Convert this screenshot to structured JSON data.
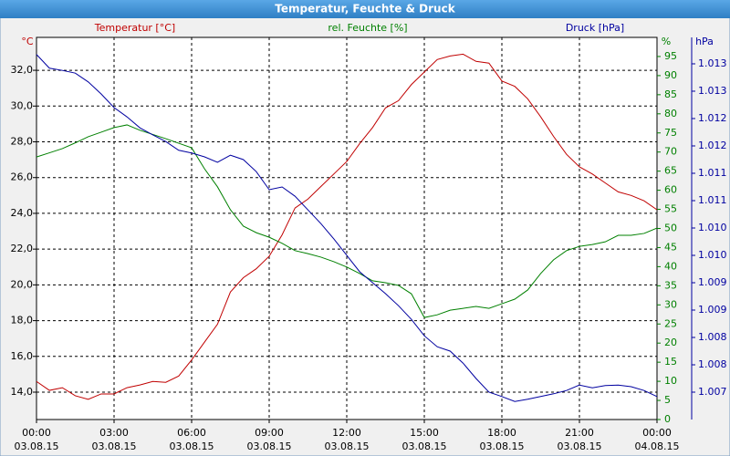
{
  "chart_data": {
    "type": "line",
    "title": "Temperatur, Feuchte & Druck",
    "x": [
      0,
      0.5,
      1,
      1.5,
      2,
      2.5,
      3,
      3.5,
      4,
      4.5,
      5,
      5.5,
      6,
      6.5,
      7,
      7.5,
      8,
      8.5,
      9,
      9.5,
      10,
      10.5,
      11,
      11.5,
      12,
      12.5,
      13,
      13.5,
      14,
      14.5,
      15,
      15.5,
      16,
      16.5,
      17,
      17.5,
      18,
      18.5,
      19,
      19.5,
      20,
      20.5,
      21,
      21.5,
      22,
      22.5,
      23,
      23.5,
      24
    ],
    "xlim": [
      0,
      24
    ],
    "xticks": [
      {
        "value": 0,
        "label": "00:00"
      },
      {
        "value": 3,
        "label": "03:00"
      },
      {
        "value": 6,
        "label": "06:00"
      },
      {
        "value": 9,
        "label": "09:00"
      },
      {
        "value": 12,
        "label": "12:00"
      },
      {
        "value": 15,
        "label": "15:00"
      },
      {
        "value": 18,
        "label": "18:00"
      },
      {
        "value": 21,
        "label": "21:00"
      },
      {
        "value": 24,
        "label": "00:00"
      }
    ],
    "xtick_dates": [
      "03.08.15",
      "03.08.15",
      "03.08.15",
      "03.08.15",
      "03.08.15",
      "03.08.15",
      "03.08.15",
      "03.08.15",
      "04.08.15"
    ],
    "ylabel": "°C",
    "y2label": "%",
    "y3label": "hPa",
    "ylim": [
      12.47,
      33.84
    ],
    "yticks": [
      {
        "value": 14,
        "label": "14,0"
      },
      {
        "value": 16,
        "label": "16,0"
      },
      {
        "value": 18,
        "label": "18,0"
      },
      {
        "value": 20,
        "label": "20,0"
      },
      {
        "value": 22,
        "label": "22,0"
      },
      {
        "value": 24,
        "label": "24,0"
      },
      {
        "value": 26,
        "label": "26,0"
      },
      {
        "value": 28,
        "label": "28,0"
      },
      {
        "value": 30,
        "label": "30,0"
      },
      {
        "value": 32,
        "label": "32,0"
      }
    ],
    "y2lim": [
      0,
      100
    ],
    "y2ticks": [
      0,
      5,
      10,
      15,
      20,
      25,
      30,
      35,
      40,
      45,
      50,
      55,
      60,
      65,
      70,
      75,
      80,
      85,
      90,
      95
    ],
    "y3lim": [
      1.0065,
      1.013483
    ],
    "y3ticks": [
      {
        "value": 1.007,
        "label": "1.007"
      },
      {
        "value": 1.0075,
        "label": "1.008"
      },
      {
        "value": 1.008,
        "label": "1.008"
      },
      {
        "value": 1.0085,
        "label": "1.009"
      },
      {
        "value": 1.009,
        "label": "1.009"
      },
      {
        "value": 1.0095,
        "label": "1.010"
      },
      {
        "value": 1.01,
        "label": "1.010"
      },
      {
        "value": 1.0105,
        "label": "1.011"
      },
      {
        "value": 1.011,
        "label": "1.011"
      },
      {
        "value": 1.0115,
        "label": "1.012"
      },
      {
        "value": 1.012,
        "label": "1.012"
      },
      {
        "value": 1.0125,
        "label": "1.013"
      },
      {
        "value": 1.013,
        "label": "1.013"
      }
    ],
    "grid": true,
    "series": [
      {
        "name": "Temperatur [°C]",
        "color": "#c00000",
        "axis": "y",
        "values": [
          14.6,
          14.1,
          14.25,
          13.8,
          13.6,
          13.9,
          13.9,
          14.25,
          14.4,
          14.6,
          14.55,
          14.9,
          15.8,
          16.8,
          17.8,
          19.6,
          20.4,
          20.9,
          21.6,
          22.8,
          24.3,
          24.8,
          25.5,
          26.2,
          26.9,
          27.9,
          28.8,
          29.9,
          30.3,
          31.2,
          31.9,
          32.6,
          32.8,
          32.9,
          32.5,
          32.4,
          31.4,
          31.1,
          30.4,
          29.4,
          28.3,
          27.3,
          26.6,
          26.2,
          25.7,
          25.2,
          25.0,
          24.7,
          24.2
        ]
      },
      {
        "name": "rel. Feuchte [%]",
        "color": "#008000",
        "axis": "y2",
        "values": [
          68.7,
          69.8,
          70.9,
          72.4,
          74,
          75.2,
          76.4,
          77.1,
          75.7,
          74.6,
          73.5,
          72.3,
          71.1,
          65.6,
          60.9,
          54.9,
          50.6,
          48.9,
          47.7,
          46.1,
          44.2,
          43.4,
          42.5,
          41.3,
          39.9,
          38.2,
          36.3,
          35.8,
          35.1,
          32.9,
          26.7,
          27.4,
          28.6,
          29.1,
          29.6,
          29.1,
          30.3,
          31.5,
          33.9,
          38.2,
          41.8,
          44.2,
          45.3,
          45.8,
          46.5,
          48.2,
          48.2,
          48.7,
          50.1
        ]
      },
      {
        "name": "Druck [hPa]",
        "color": "#0000a0",
        "axis": "y3",
        "values": [
          1.01317,
          1.01292,
          1.01288,
          1.01283,
          1.01267,
          1.01245,
          1.0122,
          1.01203,
          1.01183,
          1.0117,
          1.01158,
          1.01142,
          1.01137,
          1.0113,
          1.0112,
          1.01133,
          1.01125,
          1.01103,
          1.0107,
          1.01075,
          1.01058,
          1.01033,
          1.01008,
          1.0098,
          1.0095,
          1.0092,
          1.009,
          1.0088,
          1.00858,
          1.00833,
          1.00803,
          1.00783,
          1.00775,
          1.00753,
          1.00725,
          1.007,
          1.00692,
          1.00683,
          1.00687,
          1.00692,
          1.00697,
          1.00703,
          1.00713,
          1.00708,
          1.00712,
          1.00713,
          1.0071,
          1.00703,
          1.00692
        ]
      }
    ]
  }
}
